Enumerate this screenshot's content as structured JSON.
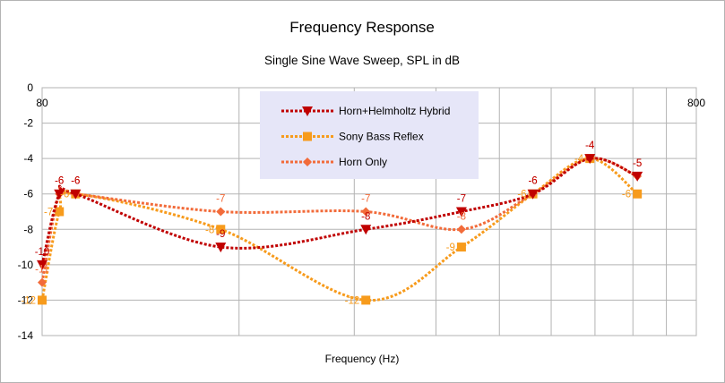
{
  "chart_data": {
    "type": "line",
    "title": "Frequency Response",
    "subtitle": "Single Sine Wave Sweep, SPL in dB",
    "xlabel": "Frequency (Hz)",
    "ylabel": "",
    "x_scale": "log",
    "xlim": [
      80,
      800
    ],
    "ylim": [
      -14,
      0
    ],
    "x_tick_labels": [
      "80",
      "800"
    ],
    "y_ticks": [
      0,
      -2,
      -4,
      -6,
      -8,
      -10,
      -12,
      -14
    ],
    "grid": true,
    "legend_position": "top-center",
    "x": [
      80,
      85,
      90,
      150,
      250,
      350,
      450,
      550,
      650
    ],
    "series": [
      {
        "name": "Horn+Helmholtz Hybrid",
        "color": "#c00000",
        "marker": "triangle-down",
        "values": [
          -10,
          -6,
          -6,
          -9,
          -8,
          -7,
          -6,
          -4,
          -5
        ]
      },
      {
        "name": "Sony Bass Reflex",
        "color": "#f79b1c",
        "marker": "square",
        "values": [
          -12,
          -7,
          -6,
          -8,
          -12,
          -9,
          -6,
          -4,
          -6
        ]
      },
      {
        "name": "Horn Only",
        "color": "#f26b3a",
        "marker": "diamond",
        "values": [
          -11,
          -6,
          -6,
          -7,
          -7,
          -8,
          -6,
          -4,
          -5
        ]
      }
    ]
  }
}
